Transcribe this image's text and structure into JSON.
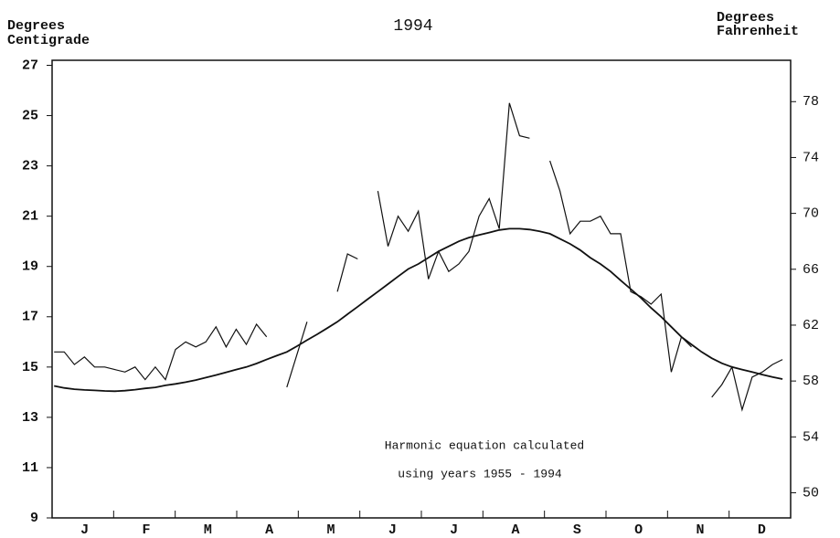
{
  "chart_data": {
    "type": "line",
    "title": "1994",
    "ylabel": [
      "Degrees",
      "Centigrade"
    ],
    "y2label": [
      "Degrees",
      "Fahrenheit"
    ],
    "annotation": [
      "Harmonic equation calculated",
      "using years 1955 - 1994"
    ],
    "categories": [
      "J",
      "F",
      "M",
      "A",
      "M",
      "J",
      "J",
      "A",
      "S",
      "O",
      "N",
      "D"
    ],
    "xlim": [
      0,
      365
    ],
    "x": [
      1,
      6,
      11,
      16,
      21,
      26,
      31,
      36,
      41,
      46,
      51,
      56,
      61,
      66,
      71,
      76,
      81,
      86,
      91,
      96,
      101,
      106,
      111,
      116,
      121,
      126,
      131,
      136,
      141,
      146,
      151,
      156,
      161,
      166,
      171,
      176,
      181,
      186,
      191,
      196,
      201,
      206,
      211,
      216,
      221,
      226,
      231,
      236,
      241,
      246,
      251,
      256,
      261,
      266,
      271,
      276,
      281,
      286,
      291,
      296,
      301,
      306,
      311,
      316,
      321,
      326,
      331,
      336,
      341,
      346,
      351,
      356,
      361
    ],
    "ylim": [
      9,
      27.2
    ],
    "yticks": [
      9,
      11,
      13,
      15,
      17,
      19,
      21,
      23,
      25,
      27
    ],
    "y2lim": [
      48.2,
      80.96
    ],
    "y2ticks": [
      50,
      54,
      58,
      62,
      66,
      70,
      74,
      78
    ],
    "series": [
      {
        "color": "#111111",
        "values": [
          15.6,
          15.6,
          15.1,
          15.4,
          15.0,
          15.0,
          14.9,
          14.8,
          15.0,
          14.5,
          15.0,
          14.5,
          15.7,
          16.0,
          15.8,
          16.0,
          16.6,
          15.8,
          16.5,
          15.9,
          16.7,
          16.2,
          null,
          14.2,
          15.5,
          16.8,
          null,
          null,
          18.0,
          19.5,
          19.3,
          null,
          22.0,
          19.8,
          21.0,
          20.4,
          21.2,
          18.5,
          19.6,
          18.8,
          19.1,
          19.6,
          21.0,
          21.7,
          20.5,
          25.5,
          24.2,
          24.1,
          null,
          23.2,
          22.0,
          20.3,
          20.8,
          20.8,
          21.0,
          20.3,
          20.3,
          18.0,
          17.8,
          17.5,
          17.9,
          14.8,
          16.2,
          15.8,
          null,
          13.8,
          14.3,
          15.0,
          13.3,
          14.6,
          14.8,
          15.1,
          15.3
        ]
      },
      {
        "color": "#111111",
        "values": [
          14.25,
          14.17,
          14.12,
          14.09,
          14.07,
          14.05,
          14.04,
          14.06,
          14.1,
          14.15,
          14.19,
          14.27,
          14.33,
          14.4,
          14.48,
          14.58,
          14.68,
          14.79,
          14.9,
          15.0,
          15.14,
          15.3,
          15.45,
          15.6,
          15.83,
          16.07,
          16.3,
          16.55,
          16.8,
          17.1,
          17.4,
          17.7,
          18.0,
          18.3,
          18.6,
          18.9,
          19.1,
          19.35,
          19.6,
          19.8,
          20.0,
          20.15,
          20.25,
          20.35,
          20.45,
          20.5,
          20.5,
          20.47,
          20.4,
          20.3,
          20.1,
          19.9,
          19.65,
          19.35,
          19.1,
          18.8,
          18.45,
          18.1,
          17.75,
          17.35,
          17.0,
          16.6,
          16.2,
          15.9,
          15.6,
          15.35,
          15.15,
          15.0,
          14.9,
          14.8,
          14.7,
          14.6,
          14.52
        ]
      }
    ]
  }
}
